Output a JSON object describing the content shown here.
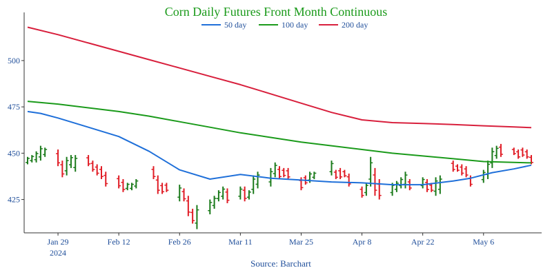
{
  "colors": {
    "title": "#1a9a1a",
    "tick": "#1f4e9a",
    "axis": "#333333",
    "up_bar": "#1a7a1a",
    "down_bar": "#e01b24",
    "ma50": "#1e6fd9",
    "ma100": "#1a9a1a",
    "ma200": "#d81f3c"
  },
  "chart_data": {
    "type": "line",
    "title": "Corn Daily Futures Front Month Continuous",
    "source": "Source: Barchart",
    "ylim": [
      407,
      526
    ],
    "yticks": [
      425,
      450,
      475,
      500
    ],
    "xlim": [
      "2024-01-22",
      "2024-05-17"
    ],
    "xticks": [
      {
        "date": "2024-01-29",
        "label": "Jan 29",
        "sublabel": "2024"
      },
      {
        "date": "2024-02-12",
        "label": "Feb 12"
      },
      {
        "date": "2024-02-26",
        "label": "Feb 26"
      },
      {
        "date": "2024-03-11",
        "label": "Mar 11"
      },
      {
        "date": "2024-03-25",
        "label": "Mar 25"
      },
      {
        "date": "2024-04-08",
        "label": "Apr 8"
      },
      {
        "date": "2024-04-22",
        "label": "Apr 22"
      },
      {
        "date": "2024-05-06",
        "label": "May 6"
      }
    ],
    "legend": {
      "placement": "top",
      "items": [
        "50 day",
        "100 day",
        "200 day"
      ]
    },
    "grid": false,
    "series": [
      {
        "name": "50 day",
        "points": [
          [
            "2024-01-22",
            472.5
          ],
          [
            "2024-01-25",
            471.5
          ],
          [
            "2024-01-29",
            469
          ],
          [
            "2024-02-05",
            464
          ],
          [
            "2024-02-12",
            459
          ],
          [
            "2024-02-19",
            451
          ],
          [
            "2024-02-26",
            441
          ],
          [
            "2024-03-04",
            436
          ],
          [
            "2024-03-11",
            438.5
          ],
          [
            "2024-03-18",
            436.5
          ],
          [
            "2024-03-25",
            435.5
          ],
          [
            "2024-04-01",
            434.5
          ],
          [
            "2024-04-08",
            434
          ],
          [
            "2024-04-15",
            433
          ],
          [
            "2024-04-22",
            433
          ],
          [
            "2024-04-29",
            435
          ],
          [
            "2024-05-03",
            436.5
          ],
          [
            "2024-05-08",
            439.5
          ],
          [
            "2024-05-13",
            441.5
          ],
          [
            "2024-05-17",
            443.5
          ]
        ]
      },
      {
        "name": "100 day",
        "points": [
          [
            "2024-01-22",
            478
          ],
          [
            "2024-01-29",
            476.5
          ],
          [
            "2024-02-05",
            474.5
          ],
          [
            "2024-02-12",
            472.5
          ],
          [
            "2024-02-19",
            470
          ],
          [
            "2024-02-26",
            467
          ],
          [
            "2024-03-04",
            464
          ],
          [
            "2024-03-11",
            461
          ],
          [
            "2024-03-18",
            458.5
          ],
          [
            "2024-03-25",
            456
          ],
          [
            "2024-04-01",
            454
          ],
          [
            "2024-04-08",
            452
          ],
          [
            "2024-04-15",
            450
          ],
          [
            "2024-04-22",
            448.5
          ],
          [
            "2024-04-29",
            447
          ],
          [
            "2024-05-06",
            445.5
          ],
          [
            "2024-05-13",
            445
          ],
          [
            "2024-05-17",
            444.8
          ]
        ]
      },
      {
        "name": "200 day",
        "points": [
          [
            "2024-01-22",
            518
          ],
          [
            "2024-01-29",
            514
          ],
          [
            "2024-02-05",
            509.5
          ],
          [
            "2024-02-12",
            505
          ],
          [
            "2024-02-19",
            500.5
          ],
          [
            "2024-02-26",
            496
          ],
          [
            "2024-03-04",
            491.5
          ],
          [
            "2024-03-11",
            487
          ],
          [
            "2024-03-18",
            482
          ],
          [
            "2024-03-25",
            477
          ],
          [
            "2024-04-01",
            472
          ],
          [
            "2024-04-08",
            468
          ],
          [
            "2024-04-15",
            466.5
          ],
          [
            "2024-04-22",
            466
          ],
          [
            "2024-04-29",
            465.5
          ],
          [
            "2024-05-06",
            464.8
          ],
          [
            "2024-05-13",
            464.2
          ],
          [
            "2024-05-17",
            463.8
          ]
        ]
      }
    ],
    "ohlc": [
      {
        "date": "2024-01-22",
        "high": 448,
        "low": 444,
        "dir": "up"
      },
      {
        "date": "2024-01-23",
        "high": 449,
        "low": 445,
        "dir": "up"
      },
      {
        "date": "2024-01-24",
        "high": 451,
        "low": 445,
        "dir": "up"
      },
      {
        "date": "2024-01-25",
        "high": 454,
        "low": 446,
        "dir": "up"
      },
      {
        "date": "2024-01-26",
        "high": 453,
        "low": 448,
        "dir": "up"
      },
      {
        "date": "2024-01-29",
        "high": 452,
        "low": 443,
        "dir": "down"
      },
      {
        "date": "2024-01-30",
        "high": 446,
        "low": 437,
        "dir": "down"
      },
      {
        "date": "2024-01-31",
        "high": 448,
        "low": 438,
        "dir": "up"
      },
      {
        "date": "2024-02-01",
        "high": 449,
        "low": 442,
        "dir": "up"
      },
      {
        "date": "2024-02-02",
        "high": 449,
        "low": 440,
        "dir": "up"
      },
      {
        "date": "2024-02-05",
        "high": 449,
        "low": 443,
        "dir": "down"
      },
      {
        "date": "2024-02-06",
        "high": 446,
        "low": 440,
        "dir": "down"
      },
      {
        "date": "2024-02-07",
        "high": 444,
        "low": 438,
        "dir": "down"
      },
      {
        "date": "2024-02-08",
        "high": 443,
        "low": 436,
        "dir": "down"
      },
      {
        "date": "2024-02-09",
        "high": 440,
        "low": 432,
        "dir": "down"
      },
      {
        "date": "2024-02-12",
        "high": 438,
        "low": 431,
        "dir": "down"
      },
      {
        "date": "2024-02-13",
        "high": 436,
        "low": 429,
        "dir": "down"
      },
      {
        "date": "2024-02-14",
        "high": 434,
        "low": 430,
        "dir": "up"
      },
      {
        "date": "2024-02-15",
        "high": 434,
        "low": 430,
        "dir": "up"
      },
      {
        "date": "2024-02-16",
        "high": 436,
        "low": 431,
        "dir": "up"
      },
      {
        "date": "2024-02-20",
        "high": 443,
        "low": 436,
        "dir": "down"
      },
      {
        "date": "2024-02-21",
        "high": 438,
        "low": 428,
        "dir": "down"
      },
      {
        "date": "2024-02-22",
        "high": 434,
        "low": 428,
        "dir": "down"
      },
      {
        "date": "2024-02-23",
        "high": 434,
        "low": 429,
        "dir": "down"
      },
      {
        "date": "2024-02-26",
        "high": 433,
        "low": 424,
        "dir": "up"
      },
      {
        "date": "2024-02-27",
        "high": 431,
        "low": 424,
        "dir": "down"
      },
      {
        "date": "2024-02-28",
        "high": 427,
        "low": 416,
        "dir": "down"
      },
      {
        "date": "2024-02-29",
        "high": 420,
        "low": 412,
        "dir": "down"
      },
      {
        "date": "2024-03-01",
        "high": 422,
        "low": 409,
        "dir": "up"
      },
      {
        "date": "2024-03-04",
        "high": 425,
        "low": 417,
        "dir": "up"
      },
      {
        "date": "2024-03-05",
        "high": 427,
        "low": 420,
        "dir": "up"
      },
      {
        "date": "2024-03-06",
        "high": 430,
        "low": 424,
        "dir": "up"
      },
      {
        "date": "2024-03-07",
        "high": 432,
        "low": 425,
        "dir": "up"
      },
      {
        "date": "2024-03-08",
        "high": 431,
        "low": 423,
        "dir": "down"
      },
      {
        "date": "2024-03-11",
        "high": 432,
        "low": 425,
        "dir": "up"
      },
      {
        "date": "2024-03-12",
        "high": 432,
        "low": 424,
        "dir": "down"
      },
      {
        "date": "2024-03-13",
        "high": 430,
        "low": 425,
        "dir": "up"
      },
      {
        "date": "2024-03-14",
        "high": 438,
        "low": 428,
        "dir": "up"
      },
      {
        "date": "2024-03-15",
        "high": 440,
        "low": 431,
        "dir": "up"
      },
      {
        "date": "2024-03-18",
        "high": 442,
        "low": 432,
        "dir": "up"
      },
      {
        "date": "2024-03-19",
        "high": 445,
        "low": 437,
        "dir": "up"
      },
      {
        "date": "2024-03-20",
        "high": 443,
        "low": 436,
        "dir": "down"
      },
      {
        "date": "2024-03-21",
        "high": 442,
        "low": 437,
        "dir": "down"
      },
      {
        "date": "2024-03-22",
        "high": 442,
        "low": 436,
        "dir": "down"
      },
      {
        "date": "2024-03-25",
        "high": 437,
        "low": 430,
        "dir": "down"
      },
      {
        "date": "2024-03-26",
        "high": 438,
        "low": 433,
        "dir": "down"
      },
      {
        "date": "2024-03-27",
        "high": 440,
        "low": 434,
        "dir": "up"
      },
      {
        "date": "2024-03-28",
        "high": 440,
        "low": 436,
        "dir": "up"
      },
      {
        "date": "2024-04-01",
        "high": 446,
        "low": 438,
        "dir": "up"
      },
      {
        "date": "2024-04-02",
        "high": 441,
        "low": 436,
        "dir": "down"
      },
      {
        "date": "2024-04-03",
        "high": 442,
        "low": 436,
        "dir": "down"
      },
      {
        "date": "2024-04-04",
        "high": 441,
        "low": 437,
        "dir": "down"
      },
      {
        "date": "2024-04-05",
        "high": 439,
        "low": 432,
        "dir": "down"
      },
      {
        "date": "2024-04-08",
        "high": 432,
        "low": 426,
        "dir": "down"
      },
      {
        "date": "2024-04-09",
        "high": 434,
        "low": 427,
        "dir": "up"
      },
      {
        "date": "2024-04-10",
        "high": 448,
        "low": 432,
        "dir": "up"
      },
      {
        "date": "2024-04-11",
        "high": 442,
        "low": 427,
        "dir": "down"
      },
      {
        "date": "2024-04-12",
        "high": 436,
        "low": 425,
        "dir": "down"
      },
      {
        "date": "2024-04-15",
        "high": 434,
        "low": 427,
        "dir": "up"
      },
      {
        "date": "2024-04-16",
        "high": 435,
        "low": 429,
        "dir": "up"
      },
      {
        "date": "2024-04-17",
        "high": 437,
        "low": 431,
        "dir": "up"
      },
      {
        "date": "2024-04-18",
        "high": 440,
        "low": 431,
        "dir": "up"
      },
      {
        "date": "2024-04-19",
        "high": 436,
        "low": 430,
        "dir": "down"
      },
      {
        "date": "2024-04-22",
        "high": 437,
        "low": 431,
        "dir": "up"
      },
      {
        "date": "2024-04-23",
        "high": 436,
        "low": 429,
        "dir": "down"
      },
      {
        "date": "2024-04-24",
        "high": 434,
        "low": 429,
        "dir": "down"
      },
      {
        "date": "2024-04-25",
        "high": 437,
        "low": 427,
        "dir": "up"
      },
      {
        "date": "2024-04-26",
        "high": 438,
        "low": 428,
        "dir": "up"
      },
      {
        "date": "2024-04-29",
        "high": 446,
        "low": 440,
        "dir": "down"
      },
      {
        "date": "2024-04-30",
        "high": 444,
        "low": 440,
        "dir": "down"
      },
      {
        "date": "2024-05-01",
        "high": 444,
        "low": 438,
        "dir": "down"
      },
      {
        "date": "2024-05-02",
        "high": 443,
        "low": 437,
        "dir": "down"
      },
      {
        "date": "2024-05-03",
        "high": 438,
        "low": 432,
        "dir": "down"
      },
      {
        "date": "2024-05-06",
        "high": 441,
        "low": 434,
        "dir": "up"
      },
      {
        "date": "2024-05-07",
        "high": 446,
        "low": 436,
        "dir": "up"
      },
      {
        "date": "2024-05-08",
        "high": 453,
        "low": 442,
        "dir": "up"
      },
      {
        "date": "2024-05-09",
        "high": 454,
        "low": 447,
        "dir": "up"
      },
      {
        "date": "2024-05-10",
        "high": 455,
        "low": 448,
        "dir": "down"
      },
      {
        "date": "2024-05-13",
        "high": 453,
        "low": 449,
        "dir": "down"
      },
      {
        "date": "2024-05-14",
        "high": 452,
        "low": 447,
        "dir": "down"
      },
      {
        "date": "2024-05-15",
        "high": 453,
        "low": 448,
        "dir": "down"
      },
      {
        "date": "2024-05-16",
        "high": 452,
        "low": 447,
        "dir": "down"
      },
      {
        "date": "2024-05-17",
        "high": 449,
        "low": 444,
        "dir": "down"
      }
    ]
  }
}
